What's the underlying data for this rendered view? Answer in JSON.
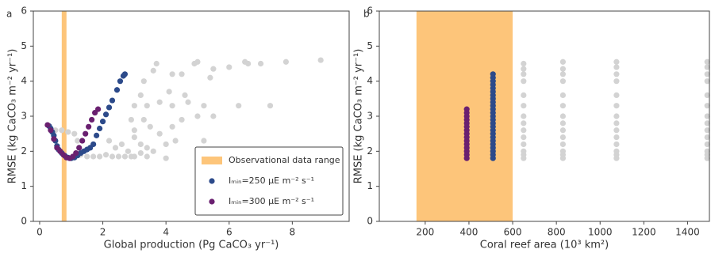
{
  "chart_data": [
    {
      "type": "scatter",
      "panel": "a",
      "xlabel": "Global production (Pg CaCO₃ yr⁻¹)",
      "ylabel": "RMSE (kg CaCO₃ m⁻² yr⁻¹)",
      "xlim": [
        -0.2,
        9.8
      ],
      "ylim": [
        0,
        6
      ],
      "xticks": [
        0,
        2,
        4,
        6,
        8
      ],
      "yticks": [
        0,
        1,
        2,
        3,
        4,
        5,
        6
      ],
      "legend": "lower right",
      "spans": [
        {
          "name": "Observational data range",
          "x": [
            0.7,
            0.85
          ],
          "color": "#fdc57a"
        }
      ],
      "series": [
        {
          "color": "#d3d3d3",
          "x": [
            0.5,
            0.7,
            0.9,
            1.1,
            1.2,
            1.3,
            1.5,
            1.7,
            1.9,
            2.1,
            2.3,
            2.5,
            2.7,
            2.9,
            3.0,
            3.2,
            3.4,
            4.0,
            2.2,
            2.4,
            2.6,
            2.8,
            3.0,
            3.2,
            3.4,
            3.6,
            4.0,
            4.3,
            5.2,
            2.9,
            3.0,
            3.3,
            3.5,
            3.8,
            4.2,
            4.5,
            5.0,
            5.5,
            3.0,
            3.2,
            3.4,
            3.8,
            4.2,
            4.7,
            5.2,
            6.3,
            7.3,
            3.3,
            3.6,
            3.7,
            4.2,
            4.5,
            4.9,
            5.0,
            5.5,
            6.0,
            6.5,
            7.0,
            7.8,
            8.9,
            6.6,
            5.4,
            4.1,
            4.6
          ],
          "values": [
            2.6,
            2.6,
            2.55,
            2.5,
            2.3,
            1.9,
            1.85,
            1.85,
            1.85,
            1.9,
            1.85,
            1.85,
            1.85,
            1.85,
            1.85,
            1.95,
            1.85,
            1.8,
            2.3,
            2.1,
            2.2,
            2.0,
            2.4,
            2.2,
            2.1,
            2.0,
            2.2,
            2.3,
            2.3,
            2.9,
            2.6,
            2.9,
            2.7,
            2.5,
            2.7,
            2.9,
            3.0,
            3.0,
            3.3,
            3.6,
            3.3,
            3.4,
            3.3,
            3.4,
            3.3,
            3.3,
            3.3,
            4.0,
            4.3,
            4.5,
            4.2,
            4.2,
            4.5,
            4.55,
            4.35,
            4.4,
            4.55,
            4.5,
            4.55,
            4.6,
            4.5,
            4.1,
            3.7,
            3.6
          ]
        },
        {
          "name": "Iₘᵢₙ=250 μE m⁻² s⁻¹",
          "color": "#2c4a8a",
          "x": [
            0.3,
            0.35,
            0.4,
            0.45,
            0.5,
            0.55,
            0.6,
            0.7,
            0.8,
            0.9,
            1.0,
            1.1,
            1.2,
            1.3,
            1.4,
            1.5,
            1.6,
            1.7,
            1.8,
            1.9,
            2.0,
            2.1,
            2.2,
            2.3,
            2.45,
            2.55,
            2.65,
            2.7
          ],
          "values": [
            2.72,
            2.65,
            2.55,
            2.45,
            2.3,
            2.15,
            2.05,
            1.95,
            1.87,
            1.82,
            1.8,
            1.82,
            1.88,
            1.95,
            2.0,
            2.05,
            2.1,
            2.2,
            2.45,
            2.65,
            2.85,
            3.05,
            3.25,
            3.45,
            3.75,
            4.0,
            4.15,
            4.2
          ]
        },
        {
          "name": "Iₘᵢₙ=300 μE m⁻² s⁻¹",
          "color": "#6a2070",
          "x": [
            0.25,
            0.35,
            0.45,
            0.55,
            0.65,
            0.75,
            0.85,
            0.95,
            1.05,
            1.15,
            1.25,
            1.35,
            1.45,
            1.55,
            1.65,
            1.75,
            1.85
          ],
          "values": [
            2.75,
            2.6,
            2.35,
            2.1,
            2.0,
            1.9,
            1.82,
            1.8,
            1.85,
            1.95,
            2.1,
            2.3,
            2.5,
            2.7,
            2.9,
            3.1,
            3.2
          ]
        }
      ]
    },
    {
      "type": "scatter",
      "panel": "b",
      "xlabel": "Coral reef area (10³ km²)",
      "ylabel": "RMSE (kg CaCO₃ m⁻² yr⁻¹)",
      "xlim": [
        -10,
        1500
      ],
      "ylim": [
        0,
        6
      ],
      "xticks": [
        200,
        400,
        600,
        800,
        1000,
        1200,
        1400
      ],
      "yticks": [
        0,
        1,
        2,
        3,
        4,
        5,
        6
      ],
      "spans": [
        {
          "x": [
            160,
            600
          ],
          "color": "#fdc57a"
        }
      ],
      "series": [
        {
          "color": "#d3d3d3",
          "x": [
            650,
            650,
            650,
            650,
            650,
            650,
            650,
            650,
            650,
            650,
            650,
            650,
            650,
            650,
            830,
            830,
            830,
            830,
            830,
            830,
            830,
            830,
            830,
            830,
            830,
            830,
            830,
            830,
            1075,
            1075,
            1075,
            1075,
            1075,
            1075,
            1075,
            1075,
            1075,
            1075,
            1075,
            1075,
            1075,
            1075,
            1490,
            1490,
            1490,
            1490,
            1490,
            1490,
            1490,
            1490,
            1490,
            1490,
            1490,
            1490,
            1490,
            1490
          ],
          "values": [
            1.8,
            1.9,
            2.0,
            2.2,
            2.4,
            2.6,
            2.8,
            3.0,
            3.3,
            3.6,
            4.0,
            4.2,
            4.35,
            4.5,
            1.8,
            1.9,
            2.0,
            2.2,
            2.4,
            2.6,
            2.8,
            3.0,
            3.3,
            3.6,
            4.0,
            4.2,
            4.35,
            4.55,
            1.8,
            1.9,
            2.0,
            2.2,
            2.4,
            2.6,
            2.8,
            3.0,
            3.3,
            3.6,
            4.0,
            4.2,
            4.4,
            4.55,
            1.8,
            1.9,
            2.0,
            2.2,
            2.4,
            2.6,
            2.8,
            3.0,
            3.3,
            3.6,
            4.0,
            4.2,
            4.4,
            4.55
          ]
        },
        {
          "color": "#2c4a8a",
          "x": [
            510,
            510,
            510,
            510,
            510,
            510,
            510,
            510,
            510,
            510,
            510,
            510,
            510,
            510,
            510,
            510,
            510,
            510,
            510,
            510,
            510,
            510,
            510,
            510,
            510
          ],
          "values": [
            1.8,
            1.9,
            2.0,
            2.1,
            2.2,
            2.3,
            2.4,
            2.5,
            2.6,
            2.7,
            2.8,
            2.9,
            3.0,
            3.1,
            3.2,
            3.3,
            3.4,
            3.5,
            3.6,
            3.7,
            3.8,
            3.9,
            4.0,
            4.1,
            4.2
          ]
        },
        {
          "color": "#6a2070",
          "x": [
            390,
            390,
            390,
            390,
            390,
            390,
            390,
            390,
            390,
            390,
            390,
            390,
            390,
            390,
            390
          ],
          "values": [
            1.8,
            1.9,
            2.0,
            2.1,
            2.2,
            2.3,
            2.4,
            2.5,
            2.6,
            2.7,
            2.8,
            2.9,
            3.0,
            3.1,
            3.2
          ]
        }
      ]
    }
  ]
}
